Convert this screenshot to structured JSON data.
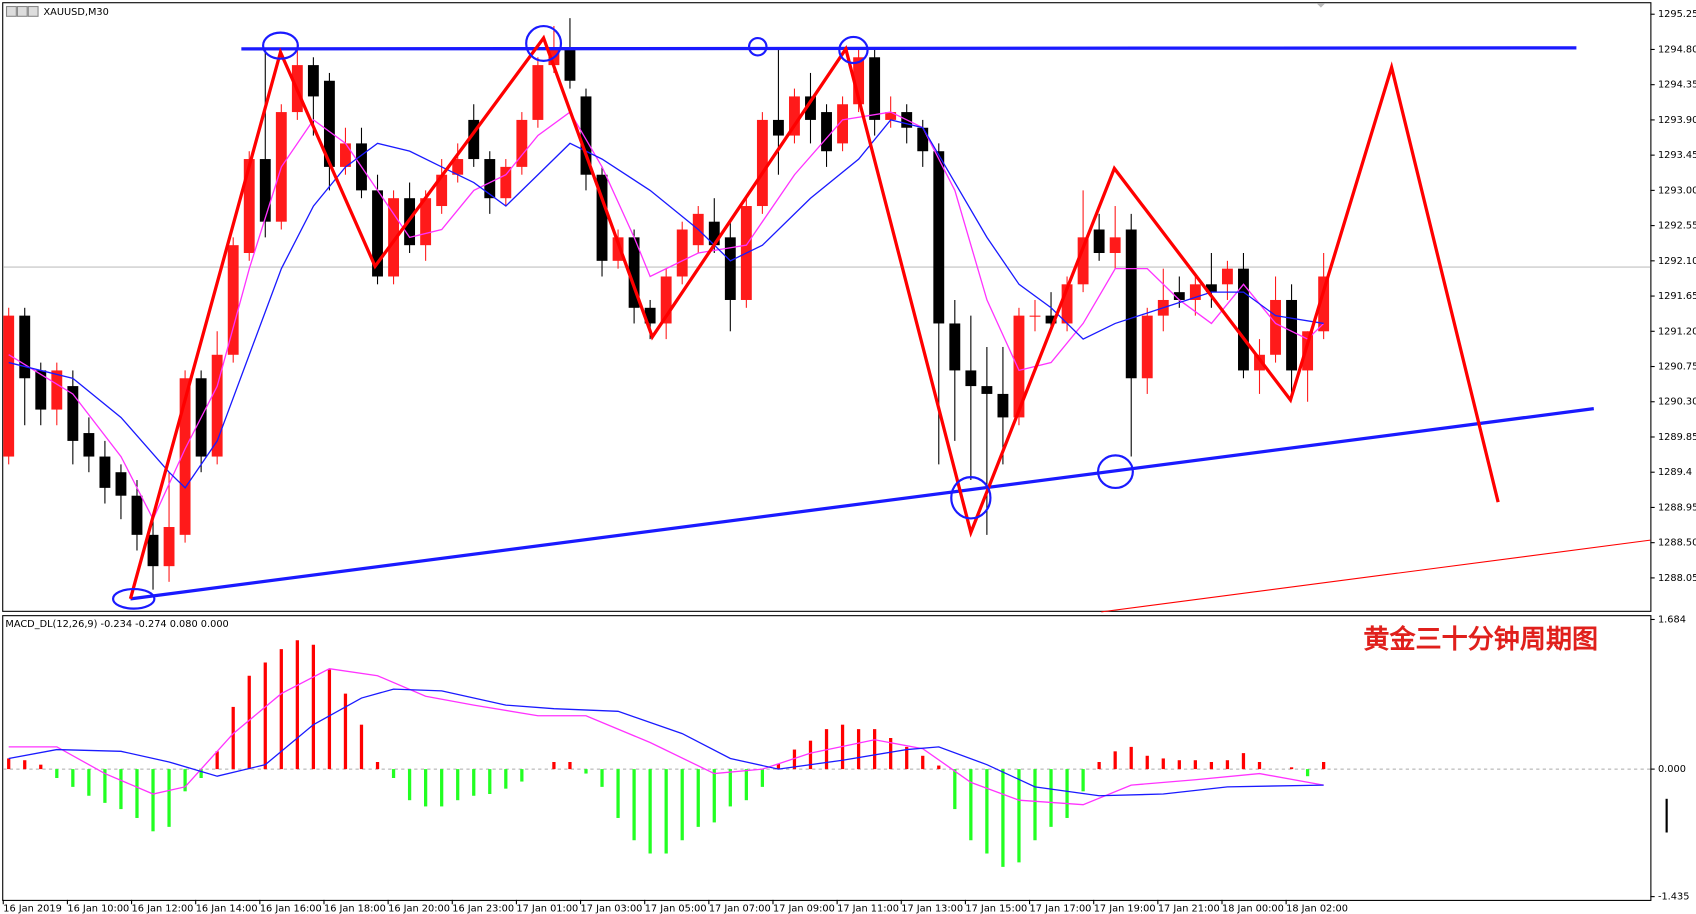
{
  "chart_data": [
    {
      "type": "candlestick",
      "title": "XAUUSD,M30",
      "categories": [
        "16 Jan 2019",
        null,
        null,
        null,
        "16 Jan 10:00",
        null,
        null,
        null,
        "16 Jan 12:00",
        null,
        null,
        null,
        "16 Jan 14:00",
        null,
        null,
        null,
        "16 Jan 16:00",
        null,
        null,
        null,
        "16 Jan 18:00",
        null,
        null,
        null,
        "16 Jan 20:00",
        null,
        null,
        null,
        "16 Jan 23:00",
        null,
        null,
        null,
        "17 Jan 01:00",
        null,
        null,
        null,
        "17 Jan 03:00",
        null,
        null,
        null,
        "17 Jan 05:00",
        null,
        null,
        null,
        "17 Jan 07:00",
        null,
        null,
        null,
        "17 Jan 09:00",
        null,
        null,
        null,
        "17 Jan 11:00",
        null,
        null,
        null,
        "17 Jan 13:00",
        null,
        null,
        null,
        "17 Jan 15:00",
        null,
        null,
        null,
        "17 Jan 17:00",
        null,
        null,
        null,
        "17 Jan 19:00",
        null,
        null,
        null,
        "17 Jan 21:00",
        null,
        null,
        null,
        "18 Jan 00:00",
        null,
        null,
        null,
        "18 Jan 02:00",
        null,
        null
      ],
      "open": [
        1289.6,
        1291.4,
        1290.7,
        1290.2,
        1290.5,
        1289.9,
        1289.6,
        1289.4,
        1289.1,
        1288.6,
        1288.2,
        1288.6,
        1290.6,
        1289.6,
        1290.9,
        1292.2,
        1293.4,
        1292.6,
        1294.0,
        1294.6,
        1294.4,
        1293.3,
        1293.6,
        1293.0,
        1291.9,
        1292.9,
        1292.3,
        1292.8,
        1293.2,
        1293.9,
        1293.4,
        1292.9,
        1293.3,
        1293.9,
        1294.6,
        1294.8,
        1294.2,
        1293.2,
        1292.1,
        1292.4,
        1291.5,
        1291.3,
        1291.9,
        1292.3,
        1292.6,
        1292.4,
        1291.6,
        1292.8,
        1293.9,
        1293.7,
        1294.2,
        1294.0,
        1293.6,
        1294.1,
        1294.7,
        1293.9,
        1294.0,
        1293.8,
        1293.5,
        1291.3,
        1290.7,
        1290.5,
        1290.4,
        1290.1,
        1291.4,
        1291.4,
        1291.3,
        1291.8,
        1292.5,
        1292.2,
        1292.5,
        1290.6,
        1291.4,
        1291.7,
        1291.6,
        1291.8,
        1291.8,
        1292.0,
        1290.7,
        1290.9,
        1291.6,
        1290.7,
        1291.2
      ],
      "high": [
        1291.5,
        1291.5,
        1290.8,
        1290.8,
        1290.7,
        1290.1,
        1289.8,
        1289.5,
        1289.3,
        1288.8,
        1289.4,
        1290.7,
        1290.7,
        1291.2,
        1292.4,
        1293.5,
        1294.8,
        1294.1,
        1294.9,
        1294.7,
        1294.5,
        1293.8,
        1293.8,
        1293.2,
        1293.0,
        1293.1,
        1293.0,
        1293.4,
        1293.6,
        1294.1,
        1293.5,
        1293.4,
        1294.0,
        1294.7,
        1295.1,
        1295.2,
        1294.3,
        1293.3,
        1292.5,
        1292.5,
        1291.6,
        1292.0,
        1292.6,
        1292.8,
        1292.9,
        1292.6,
        1292.9,
        1294.0,
        1294.8,
        1294.3,
        1294.5,
        1294.1,
        1294.2,
        1294.8,
        1294.8,
        1294.2,
        1294.1,
        1293.9,
        1293.6,
        1291.6,
        1291.4,
        1291.0,
        1291.0,
        1291.5,
        1291.6,
        1291.7,
        1291.9,
        1293.0,
        1292.7,
        1292.8,
        1292.7,
        1291.5,
        1292.0,
        1291.9,
        1291.9,
        1292.2,
        1292.1,
        1292.2,
        1291.1,
        1291.9,
        1291.8,
        1291.2,
        1292.2
      ],
      "low": [
        1289.5,
        1290.0,
        1290.0,
        1290.0,
        1289.5,
        1289.4,
        1289.0,
        1288.8,
        1288.4,
        1287.9,
        1288.0,
        1288.5,
        1289.4,
        1289.5,
        1290.8,
        1292.1,
        1292.4,
        1292.5,
        1293.9,
        1293.7,
        1293.0,
        1293.2,
        1292.9,
        1291.8,
        1291.8,
        1292.2,
        1292.1,
        1292.7,
        1293.1,
        1293.3,
        1292.7,
        1292.8,
        1293.2,
        1293.8,
        1294.5,
        1294.3,
        1293.0,
        1291.9,
        1292.0,
        1291.3,
        1291.1,
        1291.1,
        1291.8,
        1292.2,
        1292.2,
        1291.2,
        1291.5,
        1292.7,
        1293.2,
        1293.6,
        1293.6,
        1293.3,
        1293.5,
        1294.0,
        1293.7,
        1293.8,
        1293.6,
        1293.3,
        1289.5,
        1289.8,
        1289.3,
        1288.6,
        1289.5,
        1290.0,
        1291.2,
        1291.2,
        1291.2,
        1291.7,
        1292.1,
        1292.0,
        1289.6,
        1290.4,
        1291.2,
        1291.5,
        1291.4,
        1291.5,
        1291.6,
        1290.6,
        1290.4,
        1290.8,
        1290.4,
        1290.3,
        1291.1
      ],
      "close": [
        1291.4,
        1290.6,
        1290.2,
        1290.7,
        1289.8,
        1289.6,
        1289.2,
        1289.1,
        1288.6,
        1288.2,
        1288.7,
        1290.6,
        1289.6,
        1290.9,
        1292.3,
        1293.4,
        1292.6,
        1294.0,
        1294.6,
        1294.2,
        1293.3,
        1293.6,
        1293.0,
        1291.9,
        1292.9,
        1292.3,
        1292.9,
        1293.2,
        1293.4,
        1293.4,
        1292.9,
        1293.3,
        1293.9,
        1294.6,
        1294.8,
        1294.4,
        1293.2,
        1292.1,
        1292.4,
        1291.5,
        1291.3,
        1291.9,
        1292.5,
        1292.7,
        1292.3,
        1291.6,
        1292.8,
        1293.9,
        1293.7,
        1294.2,
        1293.9,
        1293.5,
        1294.1,
        1294.7,
        1293.9,
        1294.0,
        1293.8,
        1293.5,
        1291.3,
        1290.7,
        1290.5,
        1290.4,
        1290.1,
        1291.4,
        1291.4,
        1291.3,
        1291.8,
        1292.4,
        1292.2,
        1292.4,
        1290.6,
        1291.4,
        1291.6,
        1291.6,
        1291.8,
        1291.7,
        1292.0,
        1290.7,
        1290.9,
        1291.6,
        1290.7,
        1291.2,
        1291.9
      ],
      "up_color": "#ff1a1a",
      "down_color": "#000000",
      "overlays": [
        {
          "color": "#ff33ff",
          "x": [
            0,
            4,
            7,
            9,
            11,
            13,
            15,
            17,
            19,
            21,
            23,
            25,
            27,
            29,
            31,
            33,
            35,
            37,
            39,
            40,
            43,
            46,
            49,
            52,
            55,
            57,
            59,
            61,
            63,
            65,
            67,
            69,
            71,
            73,
            75,
            77,
            79,
            81,
            82
          ],
          "values": [
            1290.9,
            1290.4,
            1289.6,
            1288.8,
            1289.7,
            1290.5,
            1292.0,
            1293.3,
            1293.9,
            1293.6,
            1293.0,
            1292.4,
            1292.5,
            1293.0,
            1293.2,
            1293.7,
            1294.0,
            1293.3,
            1292.4,
            1291.9,
            1292.2,
            1292.3,
            1293.2,
            1293.9,
            1294.0,
            1293.8,
            1293.0,
            1291.6,
            1290.7,
            1290.8,
            1291.3,
            1292.0,
            1292.0,
            1291.6,
            1291.3,
            1291.8,
            1291.3,
            1291.1,
            1291.3
          ]
        },
        {
          "color": "#1a1aff",
          "x": [
            0,
            4,
            7,
            10,
            11,
            13,
            15,
            17,
            19,
            21,
            23,
            25,
            27,
            29,
            31,
            33,
            35,
            37,
            40,
            43,
            45,
            47,
            50,
            53,
            55,
            57,
            59,
            61,
            63,
            65,
            67,
            69,
            72,
            75,
            77,
            79,
            82
          ],
          "values": [
            1290.8,
            1290.6,
            1290.1,
            1289.4,
            1289.2,
            1289.8,
            1290.9,
            1292.0,
            1292.8,
            1293.3,
            1293.6,
            1293.5,
            1293.3,
            1293.1,
            1292.8,
            1293.2,
            1293.6,
            1293.4,
            1293.0,
            1292.5,
            1292.1,
            1292.3,
            1292.9,
            1293.4,
            1293.9,
            1293.8,
            1293.1,
            1292.4,
            1291.8,
            1291.5,
            1291.1,
            1291.3,
            1291.5,
            1291.7,
            1291.7,
            1291.4,
            1291.3
          ]
        }
      ],
      "bid": 1292.02,
      "ylim": [
        1287.63,
        1295.39
      ],
      "yticks": [
        1295.25,
        {
          "value": 1294.8,
          "label": "1294.80"
        },
        1294.35,
        {
          "value": 1293.9,
          "label": "1293.90"
        },
        1293.45,
        {
          "value": 1293.0,
          "label": "1293.00"
        },
        1292.55,
        {
          "value": 1292.1,
          "label": "1292.10"
        },
        1291.65,
        {
          "value": 1291.2,
          "label": "1291.20"
        },
        1290.75,
        {
          "value": 1290.3,
          "label": "1290.30"
        },
        1289.85,
        1289.4,
        1288.95,
        {
          "value": 1288.5,
          "label": "1288.50"
        },
        1288.05
      ]
    },
    {
      "type": "macd",
      "title": "MACD_DL(12,26,9) -0.234 -0.274 0.080 0.000",
      "annotation": "黄金三十分钟周期图",
      "values": [
        0.12,
        0.1,
        0.05,
        -0.1,
        -0.2,
        -0.3,
        -0.38,
        -0.45,
        -0.55,
        -0.7,
        -0.65,
        -0.25,
        -0.1,
        0.2,
        0.7,
        1.05,
        1.2,
        1.35,
        1.45,
        1.4,
        1.12,
        0.85,
        0.5,
        0.08,
        -0.1,
        -0.35,
        -0.42,
        -0.42,
        -0.35,
        -0.3,
        -0.28,
        -0.22,
        -0.14,
        0.0,
        0.08,
        0.08,
        -0.05,
        -0.2,
        -0.55,
        -0.8,
        -0.95,
        -0.95,
        -0.8,
        -0.65,
        -0.6,
        -0.42,
        -0.35,
        -0.2,
        0.06,
        0.22,
        0.32,
        0.45,
        0.5,
        0.45,
        0.45,
        0.35,
        0.25,
        0.15,
        0.04,
        -0.45,
        -0.8,
        -0.95,
        -1.1,
        -1.05,
        -0.8,
        -0.65,
        -0.55,
        -0.25,
        0.08,
        0.2,
        0.25,
        0.15,
        0.12,
        0.1,
        0.1,
        0.08,
        0.1,
        0.18,
        0.08,
        0.0,
        0.02,
        -0.08,
        0.08
      ],
      "positive_color": "#ff0000",
      "negative_color": "#22ff22",
      "overlays": [
        {
          "color": "#ff33ff",
          "x": [
            0,
            3,
            6,
            9,
            11,
            14,
            17,
            20,
            23,
            26,
            29,
            33,
            36,
            40,
            44,
            47,
            50,
            54,
            57,
            60,
            63,
            67,
            70,
            74,
            78,
            82
          ],
          "values": [
            0.25,
            0.25,
            -0.05,
            -0.28,
            -0.2,
            0.4,
            0.85,
            1.13,
            1.05,
            0.82,
            0.72,
            0.6,
            0.6,
            0.3,
            -0.05,
            0.0,
            0.18,
            0.33,
            0.23,
            -0.15,
            -0.35,
            -0.4,
            -0.18,
            -0.12,
            -0.05,
            -0.18
          ]
        },
        {
          "color": "#1a1aff",
          "x": [
            0,
            3,
            7,
            10,
            13,
            16,
            19,
            22,
            24,
            27,
            31,
            34,
            38,
            42,
            45,
            48,
            52,
            56,
            58,
            61,
            64,
            68,
            72,
            76,
            82
          ],
          "values": [
            0.12,
            0.22,
            0.2,
            0.08,
            -0.08,
            0.05,
            0.5,
            0.8,
            0.9,
            0.88,
            0.72,
            0.68,
            0.65,
            0.4,
            0.12,
            0.0,
            0.1,
            0.22,
            0.25,
            0.05,
            -0.2,
            -0.3,
            -0.28,
            -0.2,
            -0.18
          ]
        }
      ],
      "ylim": [
        -1.435,
        1.684
      ],
      "yticks": [
        1.684,
        {
          "value": 0,
          "label": "0.000"
        },
        -1.435
      ]
    }
  ]
}
